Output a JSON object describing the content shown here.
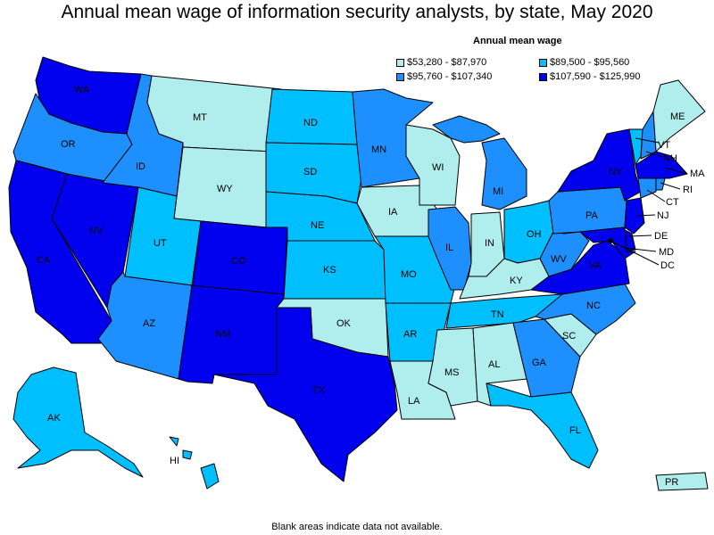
{
  "title": "Annual mean wage of information security analysts, by state, May 2020",
  "legend": {
    "title": "Annual mean wage",
    "items": [
      {
        "label": "$53,280 - $87,970",
        "color": "#b0eeee"
      },
      {
        "label": "$89,500 - $95,560",
        "color": "#00bfff"
      },
      {
        "label": "$95,760 - $107,340",
        "color": "#1e8fff"
      },
      {
        "label": "$107,590 - $125,990",
        "color": "#0000ee"
      }
    ]
  },
  "footnote": "Blank areas indicate data not available.",
  "states": {
    "WA": 3,
    "OR": 2,
    "CA": 3,
    "NV": 3,
    "ID": 2,
    "MT": 0,
    "WY": 0,
    "UT": 1,
    "CO": 3,
    "AZ": 2,
    "NM": 3,
    "ND": 1,
    "SD": 1,
    "NE": 1,
    "KS": 1,
    "OK": 0,
    "TX": 3,
    "MN": 2,
    "IA": 0,
    "MO": 1,
    "AR": 1,
    "LA": 0,
    "WI": 0,
    "IL": 2,
    "MI": 2,
    "IN": 0,
    "OH": 1,
    "KY": 0,
    "TN": 1,
    "MS": 0,
    "AL": 0,
    "GA": 2,
    "FL": 1,
    "SC": 0,
    "NC": 2,
    "VA": 3,
    "WV": 2,
    "PA": 2,
    "NY": 3,
    "ME": 0,
    "NH": 2,
    "VT": 1,
    "MA": 3,
    "RI": 2,
    "CT": 2,
    "NJ": 3,
    "DE": 3,
    "MD": 3,
    "DC": 3,
    "AK": 1,
    "HI": 1,
    "PR": 0
  }
}
